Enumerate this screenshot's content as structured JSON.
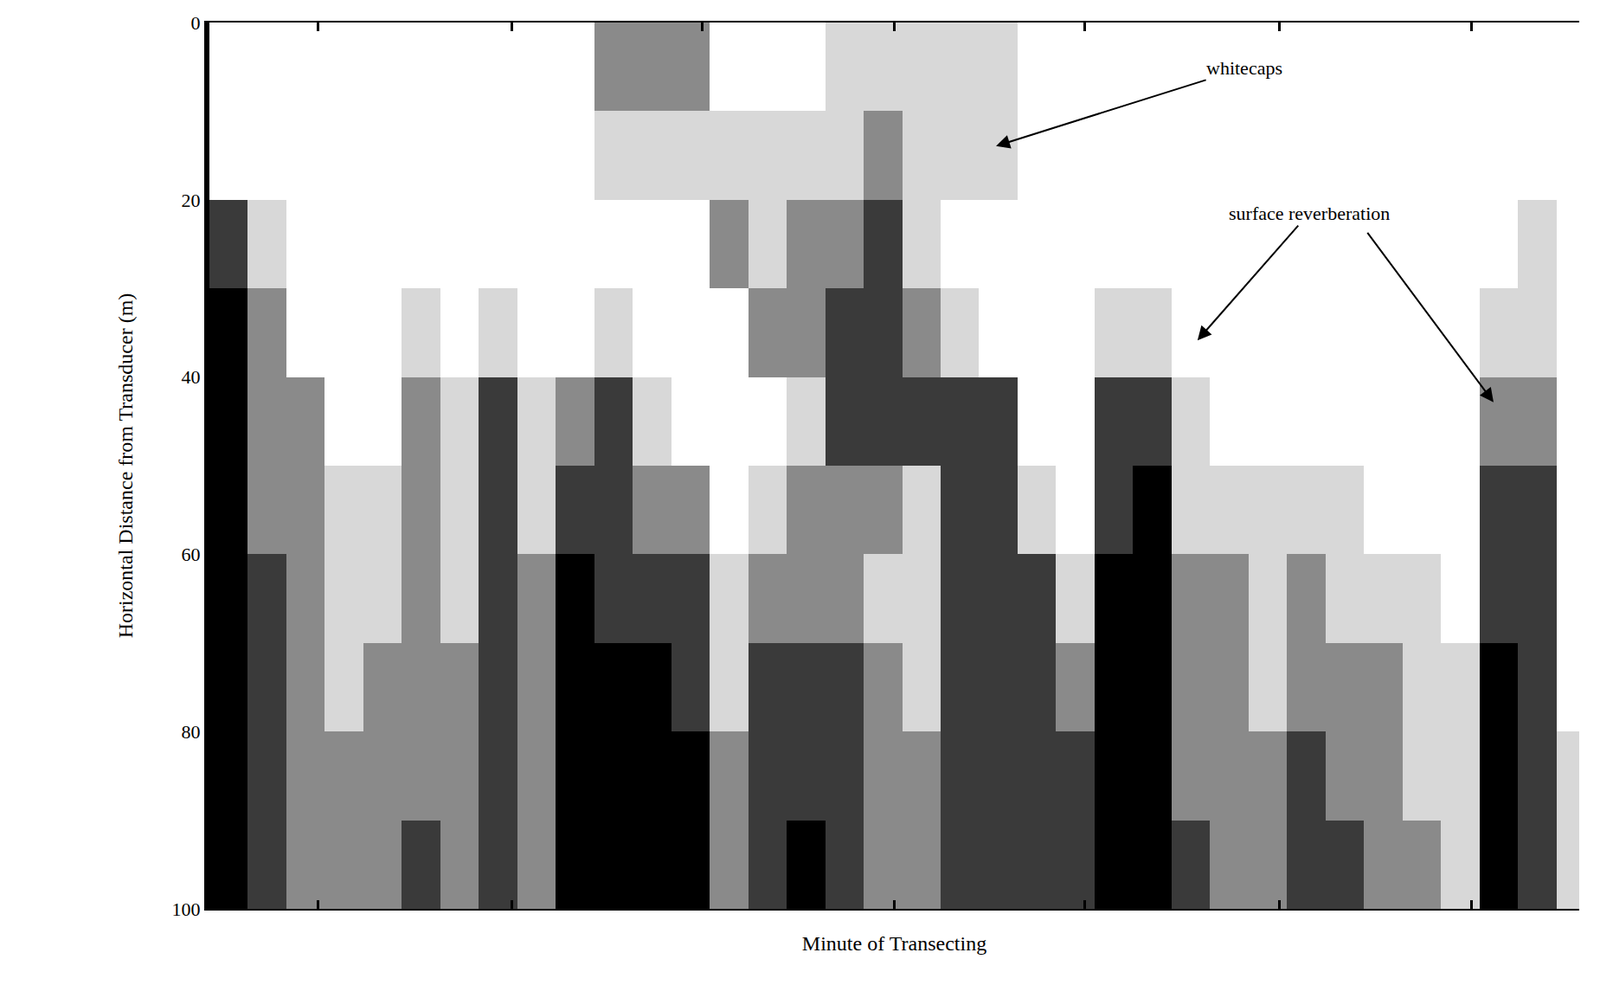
{
  "chart_data": {
    "type": "heatmap",
    "page_number": "10",
    "x_label": "Minute of Transecting",
    "y_label": "Horizontal Distance from Transducer (m)",
    "xlim": [
      0,
      7.12
    ],
    "xticks": [
      0.565,
      1.57,
      2.56,
      3.56,
      4.55,
      5.56,
      6.56
    ],
    "ylim": [
      100,
      0
    ],
    "yticks": [
      0,
      20,
      40,
      60,
      80,
      100
    ],
    "grid": true,
    "tick_labels": "y",
    "zlim": [
      0,
      4
    ],
    "x": [
      0.1,
      0.3,
      0.5,
      0.7,
      0.9,
      1.1,
      1.3,
      1.5,
      1.7,
      1.9,
      2.1,
      2.3,
      2.5,
      2.7,
      2.9,
      3.1,
      3.3,
      3.5,
      3.7,
      3.9,
      4.1,
      4.3,
      4.5,
      4.7,
      4.9,
      5.1,
      5.3,
      5.5,
      5.7,
      5.9,
      6.1,
      6.3,
      6.5,
      6.7,
      6.9,
      7.1
    ],
    "y": [
      5,
      15,
      25,
      35,
      45,
      55,
      65,
      75,
      85,
      95
    ],
    "z_by_column": [
      [
        0,
        0,
        3,
        4,
        4,
        4,
        4,
        4,
        4,
        4
      ],
      [
        0,
        0,
        1,
        2,
        2,
        2,
        3,
        3,
        3,
        3
      ],
      [
        0,
        0,
        0,
        0,
        2,
        2,
        2,
        2,
        2,
        2
      ],
      [
        0,
        0,
        0,
        0,
        0,
        1,
        1,
        1,
        2,
        2
      ],
      [
        0,
        0,
        0,
        0,
        0,
        1,
        1,
        2,
        2,
        2
      ],
      [
        0,
        0,
        0,
        1,
        2,
        2,
        2,
        2,
        2,
        3
      ],
      [
        0,
        0,
        0,
        0,
        1,
        1,
        1,
        2,
        2,
        2
      ],
      [
        0,
        0,
        0,
        1,
        3,
        3,
        3,
        3,
        3,
        3
      ],
      [
        0,
        0,
        0,
        0,
        1,
        1,
        2,
        2,
        2,
        2
      ],
      [
        0,
        0,
        0,
        0,
        2,
        3,
        4,
        4,
        4,
        4
      ],
      [
        2,
        1,
        0,
        1,
        3,
        3,
        3,
        4,
        4,
        4
      ],
      [
        2,
        1,
        0,
        0,
        1,
        2,
        3,
        4,
        4,
        4
      ],
      [
        2,
        1,
        0,
        0,
        0,
        2,
        3,
        3,
        4,
        4
      ],
      [
        0,
        1,
        2,
        0,
        0,
        0,
        1,
        1,
        2,
        2
      ],
      [
        0,
        1,
        1,
        2,
        0,
        1,
        2,
        3,
        3,
        3
      ],
      [
        0,
        1,
        2,
        2,
        1,
        2,
        2,
        3,
        3,
        4
      ],
      [
        1,
        1,
        2,
        3,
        3,
        2,
        2,
        3,
        3,
        3
      ],
      [
        1,
        2,
        3,
        3,
        3,
        2,
        1,
        2,
        2,
        2
      ],
      [
        1,
        1,
        1,
        2,
        3,
        1,
        1,
        1,
        2,
        2
      ],
      [
        1,
        1,
        0,
        1,
        3,
        3,
        3,
        3,
        3,
        3
      ],
      [
        1,
        1,
        0,
        0,
        3,
        3,
        3,
        3,
        3,
        3
      ],
      [
        0,
        0,
        0,
        0,
        0,
        1,
        3,
        3,
        3,
        3
      ],
      [
        0,
        0,
        0,
        0,
        0,
        0,
        1,
        2,
        3,
        3
      ],
      [
        0,
        0,
        0,
        1,
        3,
        3,
        4,
        4,
        4,
        4
      ],
      [
        0,
        0,
        0,
        1,
        3,
        4,
        4,
        4,
        4,
        4
      ],
      [
        0,
        0,
        0,
        0,
        1,
        1,
        2,
        2,
        2,
        3
      ],
      [
        0,
        0,
        0,
        0,
        0,
        1,
        2,
        2,
        2,
        2
      ],
      [
        0,
        0,
        0,
        0,
        0,
        1,
        1,
        1,
        2,
        2
      ],
      [
        0,
        0,
        0,
        0,
        0,
        1,
        2,
        2,
        3,
        3
      ],
      [
        0,
        0,
        0,
        0,
        0,
        1,
        1,
        2,
        2,
        3
      ],
      [
        0,
        0,
        0,
        0,
        0,
        0,
        1,
        2,
        2,
        2
      ],
      [
        0,
        0,
        0,
        0,
        0,
        0,
        1,
        1,
        1,
        2
      ],
      [
        0,
        0,
        0,
        0,
        0,
        0,
        0,
        1,
        1,
        1
      ],
      [
        0,
        0,
        0,
        1,
        2,
        3,
        3,
        4,
        4,
        4
      ],
      [
        0,
        0,
        1,
        1,
        2,
        3,
        3,
        3,
        3,
        3
      ],
      [
        0,
        0,
        0,
        0,
        0,
        0,
        0,
        0,
        1,
        1
      ]
    ],
    "annotations": [
      {
        "text": "whitecaps",
        "points": [
          [
            4.08,
            14
          ]
        ]
      },
      {
        "text": "surface reverberation",
        "points": [
          [
            5.13,
            36
          ],
          [
            6.68,
            43
          ]
        ]
      }
    ]
  }
}
